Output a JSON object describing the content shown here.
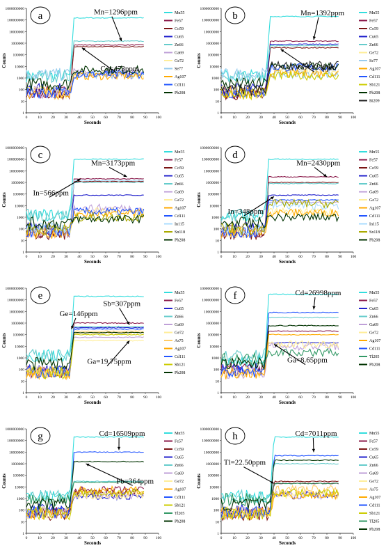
{
  "chart_data": [
    {
      "type": "line",
      "label": "a",
      "xlabel": "Seconds",
      "ylabel": "Counts",
      "xlim": [
        0,
        100
      ],
      "ylim": [
        1,
        1000000000
      ],
      "yscale": "log",
      "xticks": [
        0,
        10,
        20,
        30,
        40,
        50,
        60,
        70,
        80,
        90,
        100
      ],
      "yticks": [
        "1",
        "10",
        "100",
        "1000",
        "10000",
        "100000",
        "1000000",
        "10000000",
        "100000000",
        "1000000000"
      ],
      "legend_position": "right",
      "onset": 33,
      "annotations": [
        {
          "text": "Mn=1296ppm",
          "tx": 51,
          "ty": 300000000,
          "ax": 72,
          "ay": 1500000
        },
        {
          "text": "Co=473ppm",
          "tx": 56,
          "ty": 4000,
          "ax": 42,
          "ay": 400000
        }
      ],
      "series": [
        {
          "name": "Mn55",
          "color": "#33dddd",
          "bg": 1500,
          "plateau": 150000000
        },
        {
          "name": "Fe57",
          "color": "#8b1a4a",
          "bg": 60,
          "plateau": 700000
        },
        {
          "name": "Co59",
          "color": "#7a1414",
          "bg": 40,
          "plateau": 500000
        },
        {
          "name": "Cu65",
          "color": "#2222cc",
          "bg": 100,
          "plateau": 1800
        },
        {
          "name": "Zn66",
          "color": "#66cccc",
          "bg": 1500,
          "plateau": 1500000
        },
        {
          "name": "Ga69",
          "color": "#bfa0d8",
          "bg": 60,
          "plateau": 3000
        },
        {
          "name": "Ge72",
          "color": "#ffee99",
          "bg": 60,
          "plateau": 2000
        },
        {
          "name": "Se77",
          "color": "#99ccee",
          "bg": 2000,
          "plateau": 2000
        },
        {
          "name": "Ag107",
          "color": "#ffaa00",
          "bg": 50,
          "plateau": 1500
        },
        {
          "name": "Cd111",
          "color": "#2255ff",
          "bg": 60,
          "plateau": 2000
        },
        {
          "name": "Pb208",
          "color": "#003300",
          "bg": 300,
          "plateau": 5000
        }
      ]
    },
    {
      "type": "line",
      "label": "b",
      "xlabel": "Seconds",
      "ylabel": "Counts",
      "xlim": [
        0,
        100
      ],
      "ylim": [
        1,
        1000000000
      ],
      "yscale": "log",
      "xticks": [
        0,
        10,
        20,
        30,
        40,
        50,
        60,
        70,
        80,
        90,
        100
      ],
      "yticks": [
        "1",
        "10",
        "100",
        "1000",
        "10000",
        "100000",
        "1000000",
        "10000000",
        "100000000",
        "1000000000"
      ],
      "legend_position": "right",
      "onset": 34,
      "annotations": [
        {
          "text": "Mn=1392ppm",
          "tx": 60,
          "ty": 250000000,
          "ax": 70,
          "ay": 2000000
        },
        {
          "text": "Co=435ppm",
          "tx": 58,
          "ty": 5000,
          "ax": 45,
          "ay": 300000
        }
      ],
      "series": [
        {
          "name": "Mn55",
          "color": "#33dddd",
          "bg": 1500,
          "plateau": 200000000
        },
        {
          "name": "Fe57",
          "color": "#8b1a4a",
          "bg": 60,
          "plateau": 1500000
        },
        {
          "name": "Co59",
          "color": "#7a1414",
          "bg": 40,
          "plateau": 400000
        },
        {
          "name": "Cu65",
          "color": "#2222cc",
          "bg": 100,
          "plateau": 800000
        },
        {
          "name": "Zn66",
          "color": "#66cccc",
          "bg": 1500,
          "plateau": 600000
        },
        {
          "name": "Ge72",
          "color": "#ffee99",
          "bg": 60,
          "plateau": 3000
        },
        {
          "name": "Se77",
          "color": "#99ccee",
          "bg": 2000,
          "plateau": 2000
        },
        {
          "name": "Ag107",
          "color": "#ffaa00",
          "bg": 50,
          "plateau": 2500
        },
        {
          "name": "Cd111",
          "color": "#2255ff",
          "bg": 60,
          "plateau": 8000
        },
        {
          "name": "Sb121",
          "color": "#cccc00",
          "bg": 50,
          "plateau": 1500
        },
        {
          "name": "Pb208",
          "color": "#003300",
          "bg": 300,
          "plateau": 10000
        },
        {
          "name": "Bi209",
          "color": "#222222",
          "bg": 80,
          "plateau": 12000
        }
      ]
    },
    {
      "type": "line",
      "label": "c",
      "xlabel": "Seconds",
      "ylabel": "Counts",
      "xlim": [
        0,
        100
      ],
      "ylim": [
        1,
        1000000000
      ],
      "yscale": "log",
      "xticks": [
        0,
        10,
        20,
        30,
        40,
        50,
        60,
        70,
        80,
        90,
        100
      ],
      "yticks": [
        "1",
        "10",
        "100",
        "1000",
        "10000",
        "100000",
        "1000000",
        "10000000",
        "100000000",
        "1000000000"
      ],
      "legend_position": "right",
      "onset": 33,
      "annotations": [
        {
          "text": "Mn=3173ppm",
          "tx": 49,
          "ty": 30000000,
          "ax": 76,
          "ay": 3000000
        },
        {
          "text": "In=566ppm",
          "tx": 5,
          "ty": 80000,
          "ax": 41,
          "ay": 2000000
        }
      ],
      "series": [
        {
          "name": "Mn55",
          "color": "#33dddd",
          "bg": 1500,
          "plateau": 100000000
        },
        {
          "name": "Fe57",
          "color": "#8b1a4a",
          "bg": 60,
          "plateau": 2000000
        },
        {
          "name": "Co59",
          "color": "#7a1414",
          "bg": 40,
          "plateau": 1200000
        },
        {
          "name": "Cu65",
          "color": "#2222cc",
          "bg": 100,
          "plateau": 80000
        },
        {
          "name": "Zn66",
          "color": "#66cccc",
          "bg": 1500,
          "plateau": 1000000
        },
        {
          "name": "Ga69",
          "color": "#bfa0d8",
          "bg": 60,
          "plateau": 6000
        },
        {
          "name": "Ge72",
          "color": "#ffee99",
          "bg": 60,
          "plateau": 3000
        },
        {
          "name": "Ag107",
          "color": "#ffaa00",
          "bg": 50,
          "plateau": 2000
        },
        {
          "name": "Cd111",
          "color": "#2255ff",
          "bg": 60,
          "plateau": 3000
        },
        {
          "name": "In115",
          "color": "#aaddff",
          "bg": 100,
          "plateau": 1500000
        },
        {
          "name": "Sn118",
          "color": "#aaaa00",
          "bg": 100,
          "plateau": 1000
        },
        {
          "name": "Pb208",
          "color": "#003300",
          "bg": 300,
          "plateau": 700
        }
      ]
    },
    {
      "type": "line",
      "label": "d",
      "xlabel": "Seconds",
      "ylabel": "Counts",
      "xlim": [
        0,
        100
      ],
      "ylim": [
        1,
        1000000000
      ],
      "yscale": "log",
      "xticks": [
        0,
        10,
        20,
        30,
        40,
        50,
        60,
        70,
        80,
        90,
        100
      ],
      "yticks": [
        "1",
        "10",
        "100",
        "1000",
        "10000",
        "100000",
        "1000000",
        "10000000",
        "100000000",
        "1000000000"
      ],
      "legend_position": "right",
      "onset": 33,
      "annotations": [
        {
          "text": "Mn=2430ppm",
          "tx": 57,
          "ty": 30000000,
          "ax": 80,
          "ay": 3000000
        },
        {
          "text": "In=348ppm",
          "tx": 5,
          "ty": 2000,
          "ax": 40,
          "ay": 60000
        }
      ],
      "series": [
        {
          "name": "Mn55",
          "color": "#33dddd",
          "bg": 1500,
          "plateau": 100000000
        },
        {
          "name": "Fe57",
          "color": "#8b1a4a",
          "bg": 60,
          "plateau": 3000000
        },
        {
          "name": "Co59",
          "color": "#7a1414",
          "bg": 40,
          "plateau": 1000000
        },
        {
          "name": "Cu65",
          "color": "#2222cc",
          "bg": 100,
          "plateau": 80000
        },
        {
          "name": "Zn66",
          "color": "#66cccc",
          "bg": 1500,
          "plateau": 800000
        },
        {
          "name": "Ga69",
          "color": "#bfa0d8",
          "bg": 60,
          "plateau": 20000
        },
        {
          "name": "Ge72",
          "color": "#ffee99",
          "bg": 60,
          "plateau": 3000
        },
        {
          "name": "Ag107",
          "color": "#ffaa00",
          "bg": 50,
          "plateau": 2500
        },
        {
          "name": "Cd111",
          "color": "#2255ff",
          "bg": 60,
          "plateau": 30000
        },
        {
          "name": "In115",
          "color": "#aaddff",
          "bg": 100,
          "plateau": 10000
        },
        {
          "name": "Sn118",
          "color": "#aaaa00",
          "bg": 100,
          "plateau": 15000
        },
        {
          "name": "Pb208",
          "color": "#003300",
          "bg": 300,
          "plateau": 1000
        }
      ]
    },
    {
      "type": "line",
      "label": "e",
      "xlabel": "Seconds",
      "ylabel": "Counts",
      "xlim": [
        0,
        100
      ],
      "ylim": [
        1,
        1000000000
      ],
      "yscale": "log",
      "xticks": [
        0,
        10,
        20,
        30,
        40,
        50,
        60,
        70,
        80,
        90,
        100
      ],
      "yticks": [
        "1",
        "10",
        "100",
        "1000",
        "10000",
        "100000",
        "1000000",
        "10000000",
        "100000000",
        "1000000000"
      ],
      "legend_position": "right",
      "onset": 33,
      "annotations": [
        {
          "text": "Sb=307ppm",
          "tx": 58,
          "ty": 30000000,
          "ax": 78,
          "ay": 700000
        },
        {
          "text": "Ge=146ppm",
          "tx": 25,
          "ty": 4000000,
          "ax": 34,
          "ay": 300000
        },
        {
          "text": "Ga=19.75ppm",
          "tx": 46,
          "ty": 300,
          "ax": 78,
          "ay": 30000
        }
      ],
      "series": [
        {
          "name": "Mn55",
          "color": "#33dddd",
          "bg": 1500,
          "plateau": 200000000
        },
        {
          "name": "Fe57",
          "color": "#8b1a4a",
          "bg": 60,
          "plateau": 1000000
        },
        {
          "name": "Cu65",
          "color": "#2222cc",
          "bg": 100,
          "plateau": 400000
        },
        {
          "name": "Zn66",
          "color": "#66cccc",
          "bg": 1500,
          "plateau": 500000
        },
        {
          "name": "Ga69",
          "color": "#bfa0d8",
          "bg": 60,
          "plateau": 60000
        },
        {
          "name": "Ge72",
          "color": "#ffee99",
          "bg": 60,
          "plateau": 30000
        },
        {
          "name": "As75",
          "color": "#ffcc66",
          "bg": 60,
          "plateau": 200000
        },
        {
          "name": "Ag107",
          "color": "#ffaa00",
          "bg": 50,
          "plateau": 150000
        },
        {
          "name": "Cd111",
          "color": "#2255ff",
          "bg": 60,
          "plateau": 300000
        },
        {
          "name": "Sb121",
          "color": "#cccc00",
          "bg": 50,
          "plateau": 100000
        },
        {
          "name": "Pb208",
          "color": "#003300",
          "bg": 300,
          "plateau": 150000
        }
      ]
    },
    {
      "type": "line",
      "label": "f",
      "xlabel": "Seconds",
      "ylabel": "Counts",
      "xlim": [
        0,
        100
      ],
      "ylim": [
        1,
        1000000000
      ],
      "yscale": "log",
      "xticks": [
        0,
        10,
        20,
        30,
        40,
        50,
        60,
        70,
        80,
        90,
        100
      ],
      "yticks": [
        "1",
        "10",
        "100",
        "1000",
        "10000",
        "100000",
        "1000000",
        "10000000",
        "100000000",
        "1000000000"
      ],
      "legend_position": "right",
      "onset": 33,
      "annotations": [
        {
          "text": "Cd=26998ppm",
          "tx": 56,
          "ty": 250000000,
          "ax": 70,
          "ay": 15000000
        },
        {
          "text": "Ga=8.65ppm",
          "tx": 50,
          "ty": 400,
          "ax": 40,
          "ay": 15000
        }
      ],
      "series": [
        {
          "name": "Mn55",
          "color": "#33dddd",
          "bg": 500,
          "plateau": 300000000
        },
        {
          "name": "Fe57",
          "color": "#8b1a4a",
          "bg": 100,
          "plateau": 200000
        },
        {
          "name": "Cu65",
          "color": "#2222cc",
          "bg": 100,
          "plateau": 20000
        },
        {
          "name": "Zn66",
          "color": "#66cccc",
          "bg": 1500,
          "plateau": 3000000
        },
        {
          "name": "Ga69",
          "color": "#bfa0d8",
          "bg": 60,
          "plateau": 10000
        },
        {
          "name": "Ge72",
          "color": "#ffee99",
          "bg": 60,
          "plateau": 15000
        },
        {
          "name": "Ag107",
          "color": "#ffaa00",
          "bg": 50,
          "plateau": 100000
        },
        {
          "name": "Cd111",
          "color": "#2255ff",
          "bg": 60,
          "plateau": 8000000
        },
        {
          "name": "Tl205",
          "color": "#339966",
          "bg": 800,
          "plateau": 3000
        },
        {
          "name": "Pb208",
          "color": "#003300",
          "bg": 300,
          "plateau": 600000
        }
      ]
    },
    {
      "type": "line",
      "label": "g",
      "xlabel": "Seconds",
      "ylabel": "Counts",
      "xlim": [
        0,
        100
      ],
      "ylim": [
        1,
        1000000000
      ],
      "yscale": "log",
      "xticks": [
        0,
        10,
        20,
        30,
        40,
        50,
        60,
        70,
        80,
        90,
        100
      ],
      "yticks": [
        "1",
        "10",
        "100",
        "1000",
        "10000",
        "100000",
        "1000000",
        "10000000",
        "100000000",
        "1000000000"
      ],
      "legend_position": "right",
      "onset": 33,
      "annotations": [
        {
          "text": "Cd=16509ppm",
          "tx": 55,
          "ty": 250000000,
          "ax": 70,
          "ay": 15000000
        },
        {
          "text": "Pb=364ppm",
          "tx": 68,
          "ty": 20000,
          "ax": 45,
          "ay": 1000000
        }
      ],
      "series": [
        {
          "name": "Mn55",
          "color": "#33dddd",
          "bg": 1500,
          "plateau": 200000000
        },
        {
          "name": "Fe57",
          "color": "#8b1a4a",
          "bg": 60,
          "plateau": 5000
        },
        {
          "name": "Co59",
          "color": "#7a1414",
          "bg": 40,
          "plateau": 3000
        },
        {
          "name": "Cu65",
          "color": "#2222cc",
          "bg": 100,
          "plateau": 1500
        },
        {
          "name": "Zn66",
          "color": "#66cccc",
          "bg": 1500,
          "plateau": 30000
        },
        {
          "name": "Ga69",
          "color": "#bfa0d8",
          "bg": 60,
          "plateau": 2000
        },
        {
          "name": "Ge72",
          "color": "#ffee99",
          "bg": 60,
          "plateau": 2000
        },
        {
          "name": "Ag107",
          "color": "#ffaa00",
          "bg": 50,
          "plateau": 5000
        },
        {
          "name": "Cd111",
          "color": "#2255ff",
          "bg": 60,
          "plateau": 10000000
        },
        {
          "name": "Sb121",
          "color": "#cccc00",
          "bg": 50,
          "plateau": 3000
        },
        {
          "name": "Tl205",
          "color": "#339966",
          "bg": 800,
          "plateau": 25000
        },
        {
          "name": "Pb208",
          "color": "#003300",
          "bg": 300,
          "plateau": 1500000
        }
      ]
    },
    {
      "type": "line",
      "label": "h",
      "xlabel": "Seconds",
      "ylabel": "Counts",
      "xlim": [
        0,
        100
      ],
      "ylim": [
        1,
        1000000000
      ],
      "yscale": "log",
      "xticks": [
        0,
        10,
        20,
        30,
        40,
        50,
        60,
        70,
        80,
        90,
        100
      ],
      "yticks": [
        "1",
        "10",
        "100",
        "1000",
        "10000",
        "100000",
        "1000000",
        "10000000",
        "100000000",
        "1000000000"
      ],
      "legend_position": "right",
      "onset": 37,
      "annotations": [
        {
          "text": "Cd=7011ppm",
          "tx": 56,
          "ty": 250000000,
          "ax": 70,
          "ay": 10000000
        },
        {
          "text": "Tl=22.50ppm",
          "tx": 2,
          "ty": 800000,
          "ax": 40,
          "ay": 20000
        }
      ],
      "series": [
        {
          "name": "Mn55",
          "color": "#33dddd",
          "bg": 1500,
          "plateau": 200000000
        },
        {
          "name": "Fe57",
          "color": "#8b1a4a",
          "bg": 60,
          "plateau": 20000
        },
        {
          "name": "Co59",
          "color": "#7a1414",
          "bg": 40,
          "plateau": 30000
        },
        {
          "name": "Cu65",
          "color": "#2222cc",
          "bg": 100,
          "plateau": 2000
        },
        {
          "name": "Zn66",
          "color": "#66cccc",
          "bg": 1500,
          "plateau": 1000000
        },
        {
          "name": "Ga69",
          "color": "#bfa0d8",
          "bg": 60,
          "plateau": 2000
        },
        {
          "name": "Ge72",
          "color": "#ffee99",
          "bg": 60,
          "plateau": 2000
        },
        {
          "name": "As75",
          "color": "#ffcc66",
          "bg": 60,
          "plateau": 6000
        },
        {
          "name": "Ag107",
          "color": "#ffaa00",
          "bg": 50,
          "plateau": 2000
        },
        {
          "name": "Cd111",
          "color": "#2255ff",
          "bg": 60,
          "plateau": 5000000
        },
        {
          "name": "Sb121",
          "color": "#cccc00",
          "bg": 50,
          "plateau": 3000
        },
        {
          "name": "Tl205",
          "color": "#339966",
          "bg": 800,
          "plateau": 20000
        },
        {
          "name": "Pb208",
          "color": "#003300",
          "bg": 300,
          "plateau": 2000000
        }
      ]
    }
  ]
}
